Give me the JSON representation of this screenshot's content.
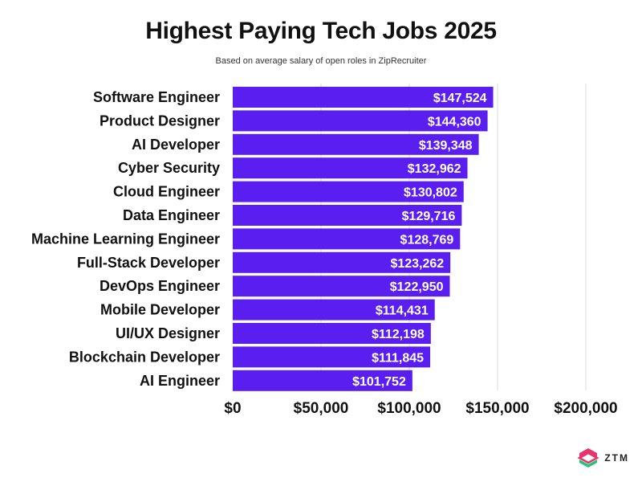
{
  "chart_data": {
    "type": "bar",
    "orientation": "horizontal",
    "title": "Highest Paying Tech Jobs 2025",
    "subtitle": "Based on average salary of open roles in ZipRecruiter",
    "categories": [
      "Software Engineer",
      "Product Designer",
      "AI Developer",
      "Cyber Security",
      "Cloud Engineer",
      "Data Engineer",
      "Machine Learning Engineer",
      "Full-Stack Developer",
      "DevOps Engineer",
      "Mobile Developer",
      "UI/UX Designer",
      "Blockchain Developer",
      "AI Engineer"
    ],
    "values": [
      147524,
      144360,
      139348,
      132962,
      130802,
      129716,
      128769,
      123262,
      122950,
      114431,
      112198,
      111845,
      101752
    ],
    "value_labels": [
      "$147,524",
      "$144,360",
      "$139,348",
      "$132,962",
      "$130,802",
      "$129,716",
      "$128,769",
      "$123,262",
      "$122,950",
      "$114,431",
      "$112,198",
      "$111,845",
      "$101,752"
    ],
    "xlim": [
      0,
      200000
    ],
    "xticks": [
      0,
      50000,
      100000,
      150000,
      200000
    ],
    "xtick_labels": [
      "$0",
      "$50,000",
      "$100,000",
      "$150,000",
      "$200,000"
    ],
    "grid": true,
    "bar_color": "#5b1ef0",
    "grid_color": "#d9d9d9",
    "xlabel": "",
    "ylabel": ""
  },
  "logo": {
    "text": "ZTM",
    "icon": "ztm-logo-icon",
    "colors": [
      "#e8336d",
      "#22c37a"
    ]
  }
}
